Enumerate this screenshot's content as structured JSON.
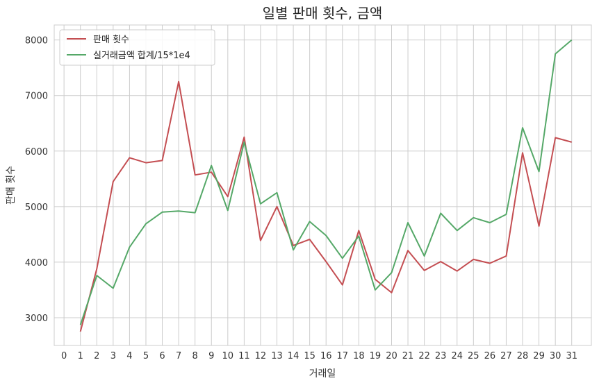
{
  "chart_data": {
    "type": "line",
    "title": "일별 판매 횟수, 금액",
    "xlabel": "거래일",
    "ylabel": "판매 횟수",
    "x_ticks": [
      0,
      1,
      2,
      3,
      4,
      5,
      6,
      7,
      8,
      9,
      10,
      11,
      12,
      13,
      14,
      15,
      16,
      17,
      18,
      19,
      20,
      21,
      22,
      23,
      24,
      25,
      26,
      27,
      28,
      29,
      30,
      31
    ],
    "y_ticks": [
      3000,
      4000,
      5000,
      6000,
      7000,
      8000
    ],
    "xlim": [
      -0.6,
      32.2
    ],
    "ylim": [
      2500,
      8270
    ],
    "grid": true,
    "legend_position": "top-left",
    "x": [
      1,
      2,
      3,
      4,
      5,
      6,
      7,
      8,
      9,
      10,
      11,
      12,
      13,
      14,
      15,
      16,
      17,
      18,
      19,
      20,
      21,
      22,
      23,
      24,
      25,
      26,
      27,
      28,
      29,
      30,
      31
    ],
    "series": [
      {
        "name": "판매 횟수",
        "color": "#c44e52",
        "values": [
          2750,
          3880,
          5450,
          5880,
          5790,
          5830,
          7250,
          5570,
          5620,
          5180,
          6250,
          4390,
          5000,
          4300,
          4410,
          4010,
          3590,
          4570,
          3690,
          3450,
          4210,
          3850,
          4010,
          3840,
          4050,
          3980,
          4110,
          5970,
          4650,
          6240,
          6160
        ]
      },
      {
        "name": "실거래금액 합계/15*1e4",
        "color": "#55a868",
        "values": [
          2870,
          3760,
          3530,
          4270,
          4690,
          4900,
          4920,
          4890,
          5740,
          4930,
          6160,
          5050,
          5250,
          4220,
          4730,
          4480,
          4070,
          4470,
          3500,
          3810,
          4710,
          4110,
          4880,
          4570,
          4800,
          4710,
          4860,
          6420,
          5630,
          7750,
          8000
        ]
      }
    ]
  }
}
